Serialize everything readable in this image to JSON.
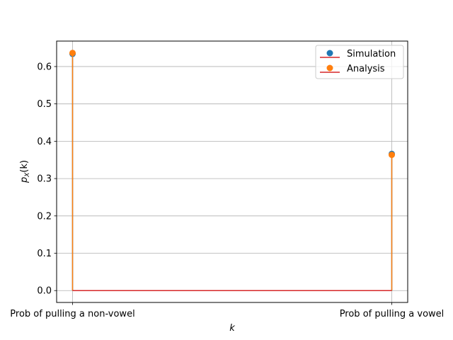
{
  "chart_data": {
    "type": "stem",
    "categories": [
      "Prob of pulling a non-vowel",
      "Prob of pulling a vowel"
    ],
    "series": [
      {
        "name": "Simulation",
        "values": [
          0.634,
          0.366
        ],
        "color": "#1f77b4"
      },
      {
        "name": "Analysis",
        "values": [
          0.6364,
          0.3636
        ],
        "color": "#ff7f0e"
      }
    ],
    "baseline_color": "#d62728",
    "xlabel": "k",
    "ylabel_main": "p",
    "ylabel_sub": "X",
    "ylabel_args": "(k)",
    "ylim": [
      -0.0318,
      0.6682
    ],
    "yticks": [
      0.0,
      0.1,
      0.2,
      0.3,
      0.4,
      0.5,
      0.6
    ],
    "ytick_labels": [
      "0.0",
      "0.1",
      "0.2",
      "0.3",
      "0.4",
      "0.5",
      "0.6"
    ],
    "grid": true,
    "legend_position": "upper-right"
  }
}
